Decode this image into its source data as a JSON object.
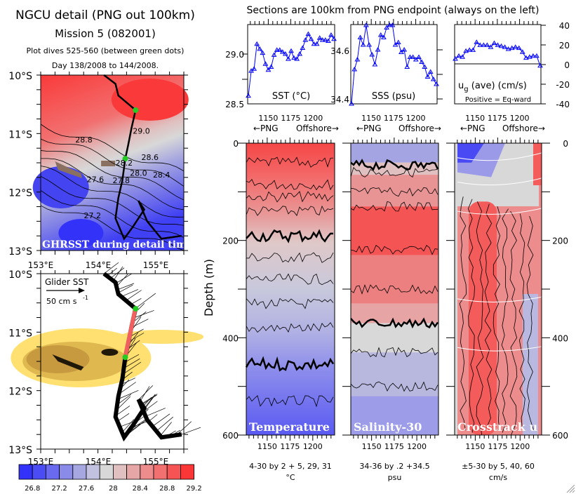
{
  "left_titles": {
    "title": "NGCU detail (PNG out 100km)",
    "mission": "Mission 5 (082001)",
    "dives": "Plot dives 525-560 (between green dots)",
    "days": "Day 138/2008 to 144/2008."
  },
  "right_title": "Sections are 100km from PNG endpoint (always on the left)",
  "maps": {
    "lat_labels": [
      "10°S",
      "11°S",
      "12°S",
      "13°S"
    ],
    "lon_labels": [
      "153°E",
      "154°E",
      "155°E"
    ],
    "top_caption": "GHRSST during detail time",
    "bottom_caption": "Glider SST",
    "scale_label": "50 cm s",
    "scale_exp": "-1",
    "contour_labels": [
      "29.0",
      "28.8",
      "28.6",
      "28.4",
      "28.2",
      "28.0",
      "27.8",
      "27.6",
      "27.2"
    ]
  },
  "colorbar": {
    "colors": [
      "#3232f8",
      "#4c4cf4",
      "#6a6af0",
      "#8a8ae8",
      "#a6a6e0",
      "#c2c2e0",
      "#d8d8d8",
      "#e0c0c0",
      "#e6a6a6",
      "#ec8c8c",
      "#f27070",
      "#f65454",
      "#fa3636"
    ],
    "labels": [
      "26.8",
      "27.2",
      "27.6",
      "28",
      "28.4",
      "28.8",
      "29.2"
    ]
  },
  "direction_label": {
    "left": "←PNG",
    "right": "Offshore→"
  },
  "chart_data": [
    {
      "type": "line",
      "title": "SST (°C)",
      "xticks": [
        "1150",
        "1175",
        "1200"
      ],
      "xlim": [
        1127,
        1224
      ],
      "ylim": [
        28.5,
        29.3
      ],
      "yticks": [
        "29.0",
        "28.5"
      ],
      "color": "#0000ff",
      "values": [
        28.58,
        28.83,
        28.85,
        29.1,
        29.05,
        29.01,
        28.9,
        28.84,
        28.87,
        28.99,
        29.04,
        29.04,
        29.02,
        29.0,
        28.95,
        29.03,
        28.96,
        28.95,
        29.0,
        29.06,
        29.14,
        29.2,
        29.15,
        29.1,
        29.1,
        29.16,
        29.14,
        29.14,
        29.13,
        29.19,
        29.15
      ]
    },
    {
      "type": "line",
      "title": "SSS (psu)",
      "xticks": [
        "1150",
        "1175",
        "1200"
      ],
      "xlim": [
        1127,
        1224
      ],
      "ylim": [
        34.38,
        34.7
      ],
      "yticks": [
        "34.6",
        "34.4"
      ],
      "color": "#0000ff",
      "values": [
        34.38,
        34.52,
        34.56,
        34.65,
        34.62,
        34.7,
        34.62,
        34.58,
        34.54,
        34.6,
        34.66,
        34.65,
        34.69,
        34.7,
        34.7,
        34.62,
        34.63,
        34.59,
        34.6,
        34.53,
        34.57,
        34.57,
        34.56,
        34.57,
        34.55,
        34.53,
        34.49,
        34.51,
        34.48,
        34.46
      ]
    },
    {
      "type": "line",
      "title": "u",
      "title_sub": "g",
      "title_rest": "(ave) (cm/s)",
      "note": "Positive = Eq-ward",
      "xticks": [
        "1150",
        "1175",
        "1200"
      ],
      "xlim": [
        1127,
        1224
      ],
      "ylim": [
        -40,
        40
      ],
      "yticks": [
        "40",
        "20",
        "0",
        "-20",
        "-40"
      ],
      "color": "#0000ff",
      "values": [
        5,
        8,
        7,
        13,
        14,
        14,
        22,
        19,
        19,
        19,
        17,
        21,
        19,
        18,
        17,
        15,
        16,
        17,
        16,
        12,
        6,
        7,
        8,
        8,
        -2
      ]
    },
    {
      "type": "heatmap",
      "label": "Temperature",
      "ylabel": "Depth (m)",
      "ylim": [
        0,
        600
      ],
      "yticks": [
        "0",
        "200",
        "400",
        "600"
      ],
      "xticks": [
        "1150",
        "1175",
        "1200"
      ],
      "contours": "4-30 by 2 + 5, 29, 31",
      "units": "°C"
    },
    {
      "type": "heatmap",
      "label": "Salinity-30",
      "ylim": [
        0,
        600
      ],
      "xticks": [
        "1150",
        "1175",
        "1200"
      ],
      "contours": "34-36 by .2 +34.5",
      "units": "psu"
    },
    {
      "type": "heatmap",
      "label": "Crosstrack u",
      "label_sub": "g",
      "ylim": [
        0,
        600
      ],
      "yticks": [
        "0",
        "200",
        "400",
        "600"
      ],
      "xticks": [
        "1150",
        "1175",
        "1200"
      ],
      "contours": "±5-30 by 5, 40, 60",
      "units": "cm/s"
    }
  ]
}
